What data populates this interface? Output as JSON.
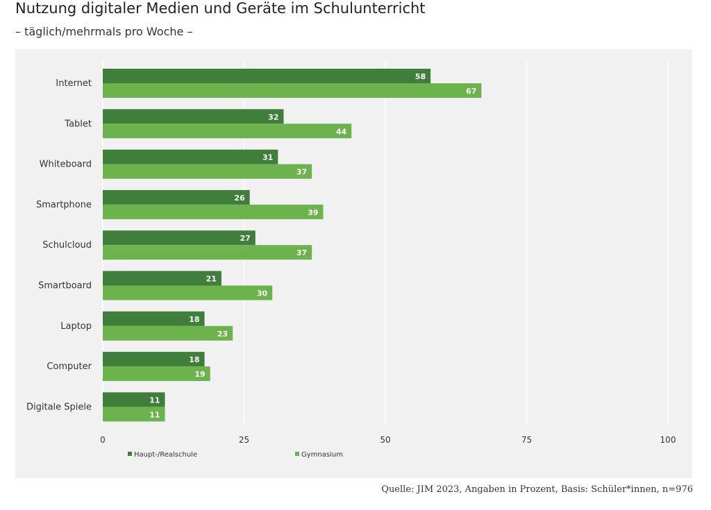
{
  "header": {
    "title": "Nutzung digitaler Medien und Geräte im Schulunterricht",
    "subtitle": "– täglich/mehrmals pro Woche –"
  },
  "colors": {
    "series_dark": "#3f7f3b",
    "series_light": "#6cb24d",
    "panel_bg": "#f1f1f1",
    "grid": "#ffffff"
  },
  "chart_data": {
    "type": "bar",
    "orientation": "horizontal",
    "categories": [
      "Internet",
      "Tablet",
      "Whiteboard",
      "Smartphone",
      "Schulcloud",
      "Smartboard",
      "Laptop",
      "Computer",
      "Digitale Spiele"
    ],
    "series": [
      {
        "name": "Haupt-/Realschule",
        "values": [
          58,
          32,
          31,
          26,
          27,
          21,
          18,
          18,
          11
        ]
      },
      {
        "name": "Gymnasium",
        "values": [
          67,
          44,
          37,
          39,
          37,
          30,
          23,
          19,
          11
        ]
      }
    ],
    "xlim": [
      0,
      100
    ],
    "xticks": [
      "0",
      "25",
      "50",
      "75",
      "100"
    ],
    "grid": true,
    "data_labels": true,
    "legend_position": "bottom-left"
  },
  "footer": {
    "source": "Quelle: JIM 2023, Angaben in Prozent, Basis: Schüler*innen, n=976"
  }
}
